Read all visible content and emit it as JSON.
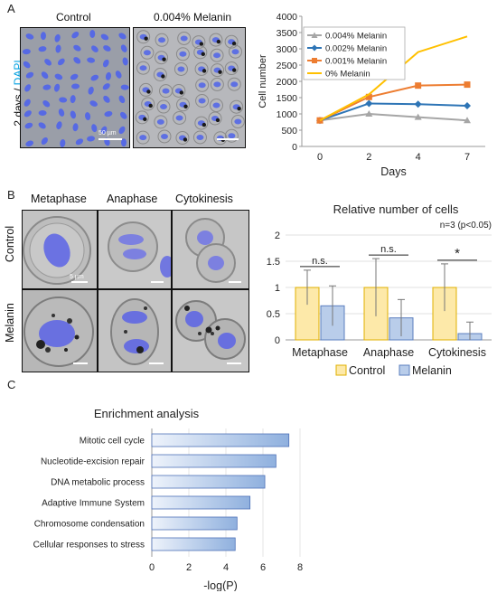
{
  "panels": {
    "a": "A",
    "b": "B",
    "c": "C"
  },
  "panel_a": {
    "col_control": "Control",
    "col_melanin": "0.004% Melanin",
    "row_label_prefix": "2 days / ",
    "row_label_dapi": "DAPI",
    "scale_text": "50 µm"
  },
  "panel_b": {
    "col_metaphase": "Metaphase",
    "col_anaphase": "Anaphase",
    "col_cytokinesis": "Cytokinesis",
    "row_control": "Control",
    "row_melanin": "Melanin",
    "scale_text": "5 µm"
  },
  "colors": {
    "dapi": "#00a0e0",
    "control_fill": "#fde9a9",
    "control_stroke": "#e0b000",
    "melanin_fill": "#b9cdea",
    "melanin_stroke": "#5b7fbf",
    "bar_c": "#8fb0de"
  },
  "chart_data": [
    {
      "type": "line",
      "x": [
        0,
        2,
        4,
        7
      ],
      "xlabel": "Days",
      "ylabel": "Cell number",
      "ylim": [
        0,
        4000
      ],
      "yticks": [
        0,
        500,
        1000,
        1500,
        2000,
        2500,
        3000,
        3500,
        4000
      ],
      "legend_position": "top-left",
      "series": [
        {
          "name": "0.004% Melanin",
          "color": "#a6a6a6",
          "marker": "triangle",
          "values": [
            800,
            1000,
            900,
            800
          ]
        },
        {
          "name": "0.002% Melanin",
          "color": "#2e75b6",
          "marker": "diamond",
          "values": [
            800,
            1320,
            1300,
            1250
          ]
        },
        {
          "name": "0.001% Melanin",
          "color": "#ed7d31",
          "marker": "square",
          "values": [
            800,
            1520,
            1870,
            1900
          ]
        },
        {
          "name": "0% Melanin",
          "color": "#ffc000",
          "marker": "none",
          "values": [
            800,
            1600,
            2900,
            3380
          ]
        }
      ]
    },
    {
      "type": "bar",
      "title": "Relative number of cells",
      "subtitle": "n=3 (p<0.05)",
      "categories": [
        "Metaphase",
        "Anaphase",
        "Cytokinesis"
      ],
      "ylim": [
        0,
        2
      ],
      "yticks": [
        0,
        0.5,
        1,
        1.5,
        2
      ],
      "legend_position": "bottom",
      "series": [
        {
          "name": "Control",
          "values": [
            1.0,
            1.0,
            1.0
          ],
          "errors": [
            0.33,
            0.55,
            0.45
          ]
        },
        {
          "name": "Melanin",
          "values": [
            0.65,
            0.42,
            0.12
          ],
          "errors": [
            0.38,
            0.35,
            0.22
          ]
        }
      ],
      "annotations": [
        "n.s.",
        "n.s.",
        "*"
      ]
    },
    {
      "type": "bar",
      "orientation": "horizontal",
      "title": "Enrichment analysis",
      "xlabel": "-log(P)",
      "xlim": [
        0,
        8
      ],
      "xticks": [
        0,
        2,
        4,
        6,
        8
      ],
      "categories": [
        "Mitotic cell cycle",
        "Nucleotide-excision repair",
        "DNA metabolic process",
        "Adaptive Immune System",
        "Chromosome condensation",
        "Cellular responses to stress"
      ],
      "values": [
        7.4,
        6.7,
        6.1,
        5.3,
        4.6,
        4.5
      ]
    }
  ]
}
